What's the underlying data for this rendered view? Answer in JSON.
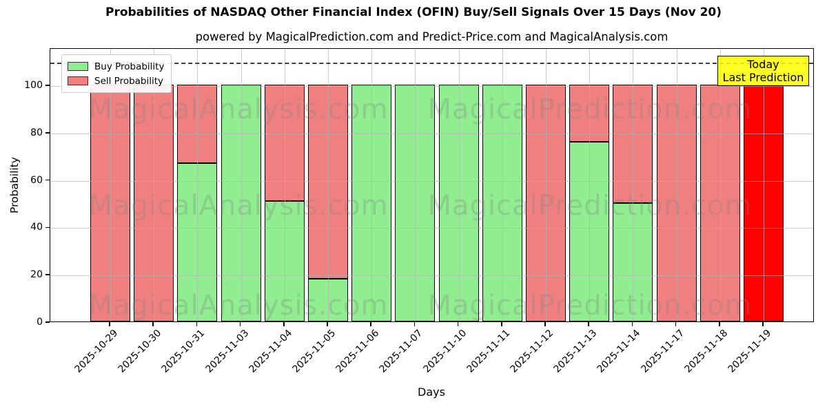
{
  "title": "Probabilities of NASDAQ Other Financial Index (OFIN) Buy/Sell Signals Over 15 Days (Nov 20)",
  "subtitle": "powered by MagicalPrediction.com and Predict-Price.com and MagicalAnalysis.com",
  "legend": {
    "buy_label": "Buy Probability",
    "sell_label": "Sell Probability"
  },
  "annotation_box": {
    "line1": "Today",
    "line2": "Last Prediction"
  },
  "axes": {
    "xlabel": "Days",
    "ylabel": "Probability",
    "yticks": [
      0,
      20,
      40,
      60,
      80,
      100
    ],
    "ylim": [
      0,
      115.7
    ],
    "dashed_line_y": 110,
    "grid": true
  },
  "colors": {
    "buy": "#90ee90",
    "sell": "#f08080",
    "today_sell": "#ff0000",
    "bar_edge": "#000000",
    "grid": "#b0b0b0",
    "dashed_line": "#3c3c3c",
    "annotation_bg": "rgba(255,255,0,0.85)",
    "annotation_border": "#000000",
    "watermark": "rgba(128,128,128,0.3)",
    "legend_bg": "rgba(255,255,255,0.9)",
    "legend_border": "#cccccc"
  },
  "watermark": {
    "left_text": "MagicalAnalysis.com",
    "right_text": "MagicalPrediction.com"
  },
  "chart_data": {
    "type": "bar",
    "stacked": true,
    "categories": [
      "2025-10-29",
      "2025-10-30",
      "2025-10-31",
      "2025-11-03",
      "2025-11-04",
      "2025-11-05",
      "2025-11-06",
      "2025-11-07",
      "2025-11-10",
      "2025-11-11",
      "2025-11-12",
      "2025-11-13",
      "2025-11-14",
      "2025-11-17",
      "2025-11-18",
      "2025-11-19"
    ],
    "series": [
      {
        "name": "Buy Probability",
        "color": "#90ee90",
        "values": [
          0,
          0,
          67,
          100,
          51,
          18,
          100,
          100,
          100,
          100,
          0,
          76,
          50,
          0,
          0,
          0
        ]
      },
      {
        "name": "Sell Probability",
        "color": "#f08080",
        "values": [
          100,
          100,
          33,
          0,
          49,
          82,
          0,
          0,
          0,
          0,
          100,
          24,
          50,
          100,
          100,
          100
        ]
      }
    ],
    "today_index": 15,
    "today_note": "Today / Last Prediction bar drawn in pure red",
    "title": "Probabilities of NASDAQ Other Financial Index (OFIN) Buy/Sell Signals Over 15 Days (Nov 20)",
    "xlabel": "Days",
    "ylabel": "Probability",
    "ylim": [
      0,
      115.7
    ],
    "legend_position": "upper left",
    "dashed_threshold_line_y": 110
  }
}
